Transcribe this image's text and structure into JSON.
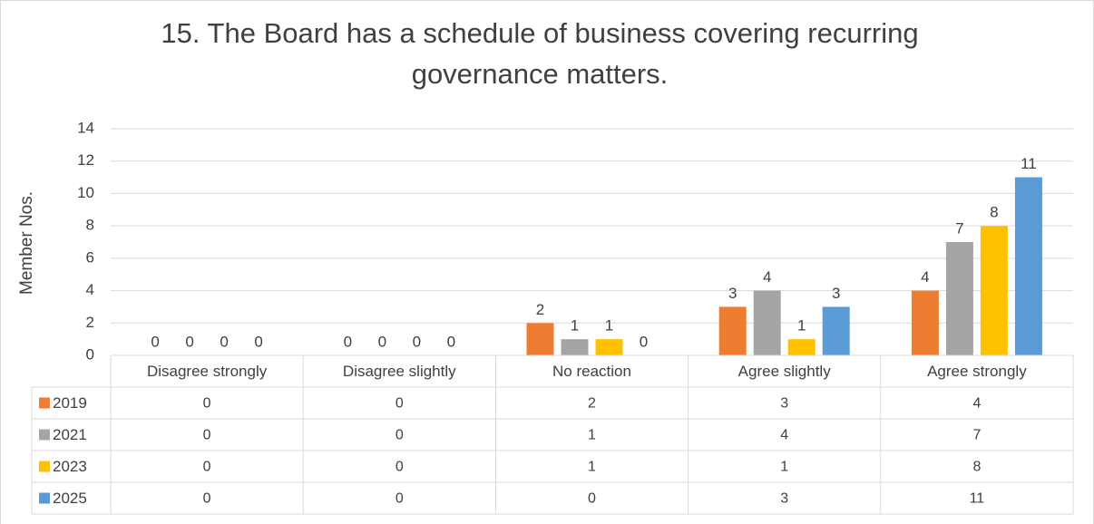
{
  "chart_data": {
    "type": "bar",
    "title": "15.  The Board has a schedule of business covering recurring governance matters.",
    "y_label": "Member Nos.",
    "categories": [
      "Disagree strongly",
      "Disagree slightly",
      "No reaction",
      "Agree slightly",
      "Agree strongly"
    ],
    "series": [
      {
        "name": "2019",
        "color": "#ed7d31",
        "values": [
          0,
          0,
          2,
          3,
          4
        ]
      },
      {
        "name": "2021",
        "color": "#a5a5a5",
        "values": [
          0,
          0,
          1,
          4,
          7
        ]
      },
      {
        "name": "2023",
        "color": "#ffc000",
        "values": [
          0,
          0,
          1,
          1,
          8
        ]
      },
      {
        "name": "2025",
        "color": "#5b9bd5",
        "values": [
          0,
          0,
          0,
          3,
          11
        ]
      }
    ],
    "ylim": [
      0,
      14
    ],
    "yticks": [
      0,
      2,
      4,
      6,
      8,
      10,
      12,
      14
    ],
    "grid": true,
    "data_table": true
  }
}
